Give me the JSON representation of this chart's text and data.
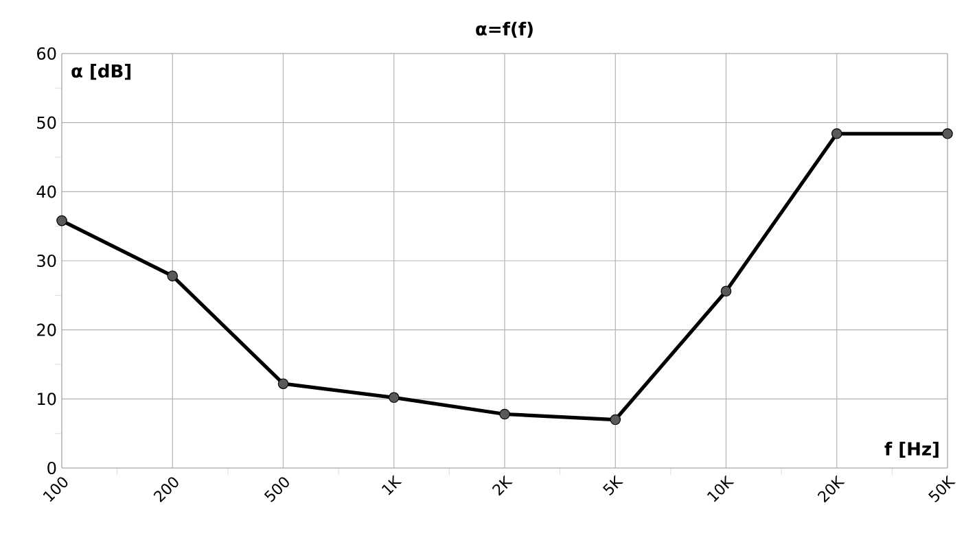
{
  "chart_data": {
    "type": "line",
    "title": "α=f(f)",
    "xlabel": "f [Hz]",
    "ylabel": "α [dB]",
    "categories": [
      "100",
      "200",
      "500",
      "1K",
      "2K",
      "5K",
      "10K",
      "20K",
      "50K"
    ],
    "series": [
      {
        "color": "#000000",
        "values": [
          35.8,
          27.8,
          12.2,
          10.2,
          7.8,
          7.0,
          25.6,
          48.4,
          48.4
        ]
      }
    ],
    "ylim": [
      0,
      60
    ],
    "yticks": [
      0,
      10,
      20,
      30,
      40,
      50,
      60
    ],
    "grid": true,
    "marker": "circle",
    "line_style": "solid"
  }
}
